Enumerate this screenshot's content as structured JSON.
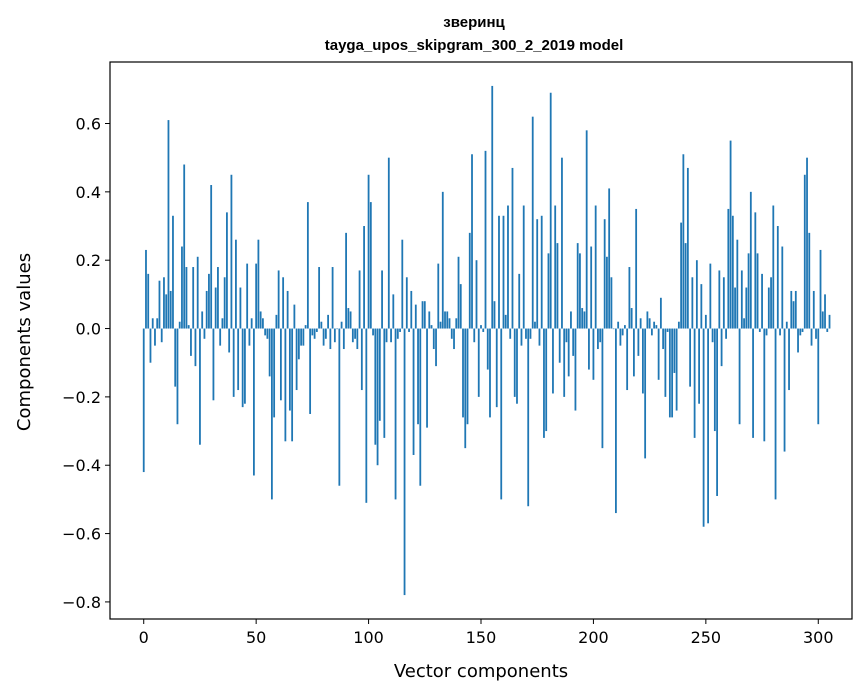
{
  "chart_data": {
    "type": "bar",
    "title": "зверинц",
    "subtitle": "tayga_upos_skipgram_300_2_2019 model",
    "xlabel": "Vector components",
    "ylabel": "Components values",
    "xlim": [
      -15,
      315
    ],
    "ylim": [
      -0.85,
      0.78
    ],
    "xticks": [
      0,
      50,
      100,
      150,
      200,
      250,
      300
    ],
    "xtick_labels": [
      "0",
      "50",
      "100",
      "150",
      "200",
      "250",
      "300"
    ],
    "yticks": [
      -0.8,
      -0.6,
      -0.4,
      -0.2,
      0.0,
      0.2,
      0.4,
      0.6
    ],
    "ytick_labels": [
      "−0.8",
      "−0.6",
      "−0.4",
      "−0.2",
      "0.0",
      "0.2",
      "0.4",
      "0.6"
    ],
    "bar_color": "#1f77b4",
    "grid": false,
    "values": [
      -0.42,
      0.23,
      0.16,
      -0.1,
      0.03,
      -0.05,
      0.03,
      0.14,
      -0.04,
      0.15,
      0.1,
      0.61,
      0.11,
      0.33,
      -0.17,
      -0.28,
      0.02,
      0.24,
      0.48,
      0.18,
      0.01,
      -0.08,
      0.18,
      -0.11,
      0.21,
      -0.34,
      0.05,
      -0.03,
      0.11,
      0.16,
      0.42,
      -0.21,
      0.12,
      0.18,
      -0.05,
      0.03,
      0.15,
      0.34,
      -0.07,
      0.45,
      -0.2,
      0.26,
      -0.18,
      0.12,
      -0.23,
      -0.22,
      0.19,
      -0.05,
      0.03,
      -0.43,
      0.19,
      0.26,
      0.05,
      0.03,
      -0.02,
      -0.03,
      -0.14,
      -0.5,
      -0.26,
      0.04,
      0.17,
      -0.21,
      0.15,
      -0.33,
      0.11,
      -0.24,
      -0.33,
      0.07,
      -0.18,
      -0.09,
      -0.05,
      -0.05,
      0.01,
      0.37,
      -0.25,
      -0.02,
      -0.03,
      -0.01,
      0.18,
      0.02,
      -0.05,
      -0.03,
      0.04,
      -0.06,
      0.18,
      -0.04,
      0.0,
      -0.46,
      0.02,
      -0.06,
      0.28,
      0.06,
      0.05,
      -0.04,
      -0.03,
      -0.06,
      0.17,
      -0.18,
      0.3,
      -0.51,
      0.45,
      0.37,
      -0.02,
      -0.34,
      -0.4,
      -0.27,
      0.17,
      -0.32,
      -0.04,
      0.5,
      -0.04,
      0.1,
      -0.5,
      -0.03,
      -0.01,
      0.26,
      -0.78,
      0.15,
      -0.01,
      0.11,
      -0.37,
      0.07,
      -0.28,
      -0.46,
      0.08,
      0.08,
      -0.29,
      0.05,
      0.01,
      -0.06,
      -0.11,
      0.19,
      0.02,
      0.4,
      0.05,
      0.05,
      0.03,
      -0.03,
      -0.06,
      0.03,
      0.21,
      0.13,
      -0.26,
      -0.35,
      -0.28,
      0.28,
      0.51,
      -0.04,
      0.2,
      -0.2,
      0.01,
      -0.01,
      0.52,
      -0.12,
      -0.26,
      0.71,
      0.08,
      -0.23,
      0.33,
      -0.5,
      0.33,
      0.04,
      0.36,
      -0.03,
      0.47,
      -0.2,
      -0.22,
      0.16,
      -0.05,
      0.36,
      -0.03,
      -0.52,
      -0.03,
      0.62,
      0.02,
      0.32,
      -0.05,
      0.33,
      -0.32,
      -0.3,
      0.22,
      0.69,
      -0.19,
      0.36,
      0.25,
      -0.1,
      0.5,
      -0.2,
      -0.04,
      -0.14,
      0.05,
      -0.08,
      -0.24,
      0.25,
      0.22,
      0.06,
      0.05,
      0.58,
      -0.12,
      0.24,
      -0.15,
      0.36,
      -0.06,
      -0.04,
      -0.35,
      0.32,
      0.21,
      0.41,
      0.15,
      0.0,
      -0.54,
      0.02,
      -0.05,
      -0.02,
      0.01,
      -0.18,
      0.18,
      0.06,
      -0.14,
      0.35,
      -0.08,
      0.03,
      -0.19,
      -0.38,
      0.05,
      0.03,
      -0.02,
      0.02,
      0.01,
      -0.15,
      0.09,
      -0.06,
      -0.2,
      -0.01,
      -0.26,
      -0.26,
      -0.13,
      -0.24,
      0.02,
      0.31,
      0.51,
      0.25,
      0.47,
      -0.17,
      0.15,
      -0.32,
      0.2,
      -0.22,
      0.13,
      -0.58,
      0.04,
      -0.57,
      0.19,
      -0.04,
      -0.3,
      -0.49,
      0.17,
      -0.11,
      0.15,
      -0.03,
      0.35,
      0.55,
      0.33,
      0.12,
      0.26,
      -0.28,
      0.17,
      0.03,
      0.12,
      0.22,
      0.4,
      -0.32,
      0.34,
      0.22,
      -0.01,
      0.16,
      -0.33,
      -0.02,
      0.12,
      0.15,
      0.36,
      -0.5,
      0.3,
      -0.02,
      0.24,
      -0.36,
      0.02,
      -0.18,
      0.11,
      0.08,
      0.11,
      -0.07,
      -0.02,
      -0.01,
      0.45,
      0.5,
      0.28,
      -0.05,
      0.11,
      -0.03,
      -0.28,
      0.23,
      0.05,
      0.1,
      -0.01,
      0.04
    ]
  }
}
